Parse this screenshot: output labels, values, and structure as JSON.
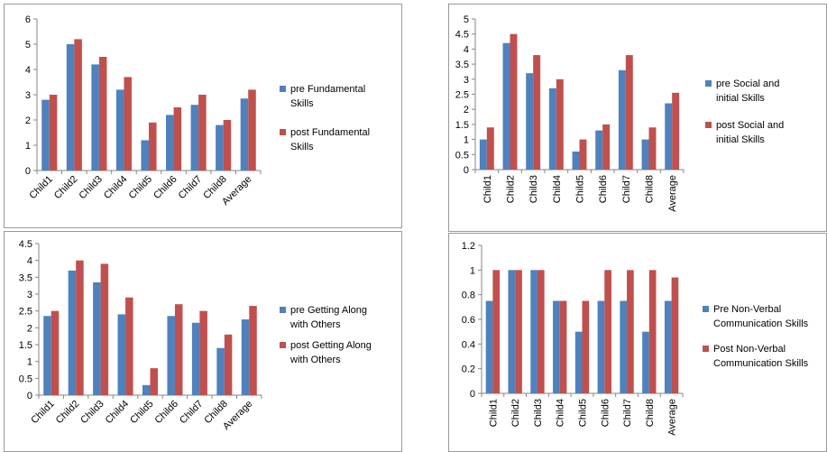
{
  "colors": {
    "pre": "#4f81bd",
    "post": "#c0504d",
    "axis": "#868686"
  },
  "chart_data": [
    {
      "type": "bar",
      "categories": [
        "Child1",
        "Child2",
        "Child3",
        "Child4",
        "Child5",
        "Child6",
        "Child7",
        "Child8",
        "Average"
      ],
      "series": [
        {
          "name": "pre Fundamental Skills",
          "values": [
            2.8,
            5.0,
            4.2,
            3.2,
            1.2,
            2.2,
            2.6,
            1.8,
            2.85
          ]
        },
        {
          "name": "post Fundamental Skills",
          "values": [
            3.0,
            5.2,
            4.5,
            3.7,
            1.9,
            2.5,
            3.0,
            2.0,
            3.2
          ]
        }
      ],
      "yticks": [
        "0",
        "1",
        "2",
        "3",
        "4",
        "5",
        "6"
      ],
      "ylim": [
        0,
        6
      ],
      "legend": "right",
      "grid": false
    },
    {
      "type": "bar",
      "categories": [
        "Child1",
        "Child2",
        "Child3",
        "Child4",
        "Child5",
        "Child6",
        "Child7",
        "Child8",
        "Average"
      ],
      "series": [
        {
          "name": "pre Social and initial Skills",
          "values": [
            1.0,
            4.2,
            3.2,
            2.7,
            0.6,
            1.3,
            3.3,
            1.0,
            2.2
          ]
        },
        {
          "name": "post Social and initial Skills",
          "values": [
            1.4,
            4.5,
            3.8,
            3.0,
            1.0,
            1.5,
            3.8,
            1.4,
            2.55
          ]
        }
      ],
      "yticks": [
        "0",
        "0.5",
        "1",
        "1.5",
        "2",
        "2.5",
        "3",
        "3.5",
        "4",
        "4.5",
        "5"
      ],
      "ylim": [
        0,
        5
      ],
      "legend": "right",
      "grid": false
    },
    {
      "type": "bar",
      "categories": [
        "Child1",
        "Child2",
        "Child3",
        "Child4",
        "Child5",
        "Child6",
        "Child7",
        "Child8",
        "Average"
      ],
      "series": [
        {
          "name": "pre Getting Along with Others",
          "values": [
            2.35,
            3.7,
            3.35,
            2.4,
            0.3,
            2.35,
            2.15,
            1.4,
            2.25
          ]
        },
        {
          "name": "post Getting Along with Others",
          "values": [
            2.5,
            4.0,
            3.9,
            2.9,
            0.8,
            2.7,
            2.5,
            1.8,
            2.65
          ]
        }
      ],
      "yticks": [
        "0",
        "0.5",
        "1",
        "1.5",
        "2",
        "2.5",
        "3",
        "3.5",
        "4",
        "4.5"
      ],
      "ylim": [
        0,
        4.5
      ],
      "legend": "right",
      "grid": false
    },
    {
      "type": "bar",
      "categories": [
        "Child1",
        "Child2",
        "Child3",
        "Child4",
        "Child5",
        "Child6",
        "Child7",
        "Child8",
        "Average"
      ],
      "series": [
        {
          "name": "Pre Non-Verbal Communication Skills",
          "values": [
            0.75,
            1.0,
            1.0,
            0.75,
            0.5,
            0.75,
            0.75,
            0.5,
            0.75
          ]
        },
        {
          "name": "Post Non-Verbal Communication Skills",
          "values": [
            1.0,
            1.0,
            1.0,
            0.75,
            0.75,
            1.0,
            1.0,
            1.0,
            0.94
          ]
        }
      ],
      "yticks": [
        "0",
        "0.2",
        "0.4",
        "0.6",
        "0.8",
        "1",
        "1.2"
      ],
      "ylim": [
        0,
        1.2
      ],
      "legend": "right",
      "grid": false
    }
  ]
}
